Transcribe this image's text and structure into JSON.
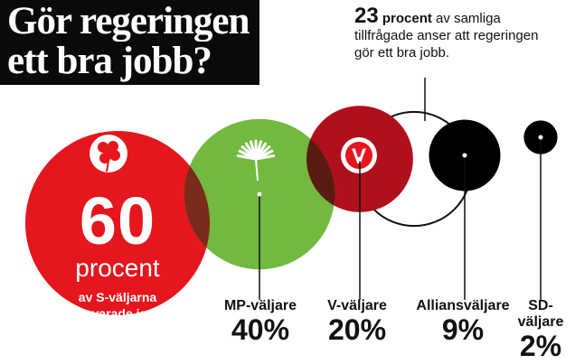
{
  "title": {
    "line1": "Gör regeringen",
    "line2": "ett bra jobb?"
  },
  "note": {
    "number": "23",
    "word": "procent",
    "text1": " av samliga",
    "text2": "tillfrågade anser att regeringen",
    "text3": "gör ett bra jobb."
  },
  "s_circle": {
    "number": "60",
    "unit": "procent",
    "sub1": "av S-väljarna",
    "sub2": "svarade ja."
  },
  "colors": {
    "red": "#e5161d",
    "green": "#72b940",
    "darkred": "#b0101c",
    "black": "#000000",
    "overlap": "#7a2b1b"
  },
  "icons": {
    "s": "rose-icon",
    "mp": "dandelion-icon",
    "v": "v-logo-icon"
  },
  "chart_data": {
    "type": "bubble",
    "title": "Gör regeringen ett bra jobb?",
    "categories": [
      "S-väljare",
      "MP-väljare",
      "V-väljare",
      "Alliansväljare",
      "SD-väljare"
    ],
    "values": [
      60,
      40,
      20,
      9,
      2
    ],
    "labels": [
      "",
      "MP-väljare",
      "V-väljare",
      "Alliansväljare",
      "SD-väljare"
    ],
    "value_labels": [
      "60",
      "40%",
      "20%",
      "9%",
      "2%"
    ],
    "overall": 23,
    "unit": "procent"
  }
}
